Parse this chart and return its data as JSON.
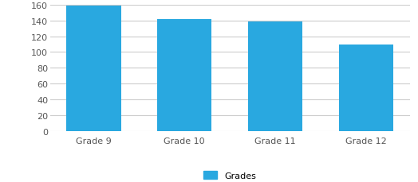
{
  "categories": [
    "Grade 9",
    "Grade 10",
    "Grade 11",
    "Grade 12"
  ],
  "values": [
    159,
    142,
    139,
    109
  ],
  "bar_color": "#29a8e0",
  "legend_label": "Grades",
  "ylim": [
    0,
    160
  ],
  "yticks": [
    0,
    20,
    40,
    60,
    80,
    100,
    120,
    140,
    160
  ],
  "grid_color": "#cccccc",
  "background_color": "#ffffff",
  "tick_color": "#555555",
  "bar_width": 0.6,
  "figsize": [
    5.24,
    2.3
  ],
  "dpi": 100
}
